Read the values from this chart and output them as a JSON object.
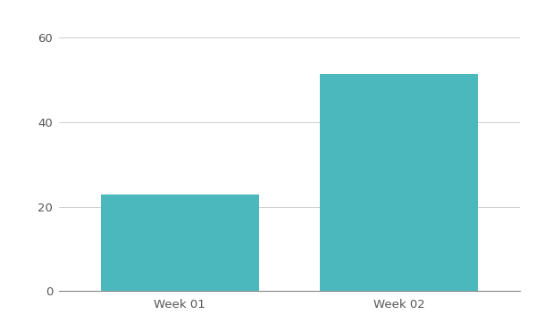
{
  "categories": [
    "Week 01",
    "Week 02"
  ],
  "values": [
    23.0,
    51.5
  ],
  "bar_color": "#4ab8bc",
  "background_color": "#ffffff",
  "ylim": [
    0,
    65
  ],
  "yticks": [
    0,
    20,
    40,
    60
  ],
  "bar_width": 0.72,
  "grid_color": "#cccccc",
  "tick_label_color": "#555555",
  "tick_label_fontsize": 9.5,
  "spine_color": "#888888",
  "xlim": [
    -0.55,
    1.55
  ]
}
